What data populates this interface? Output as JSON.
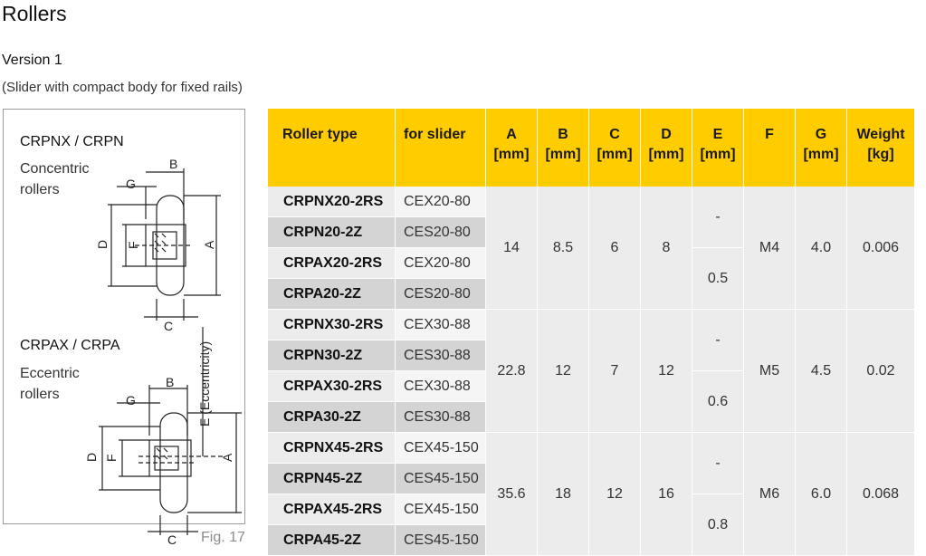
{
  "page": {
    "title": "Rollers",
    "subtitle": "Version 1",
    "note": "(Slider with compact body for fixed rails)",
    "figure_label": "Fig. 17"
  },
  "figure": {
    "concentric": {
      "title": "CRPNX / CRPN",
      "desc": "Concentric rollers",
      "dims": {
        "a": "A",
        "b": "B",
        "c": "C",
        "d": "D",
        "f": "F",
        "g": "G"
      }
    },
    "eccentric": {
      "title": "CRPAX / CRPA",
      "desc": "Eccentric rollers",
      "dims": {
        "a": "A",
        "b": "B",
        "c": "C",
        "d": "D",
        "f": "F",
        "g": "G",
        "e": "E (Eccentricity)"
      }
    }
  },
  "table": {
    "headers": {
      "roller_type": "Roller type",
      "for_slider": "for slider",
      "a": "A",
      "b": "B",
      "c": "C",
      "d": "D",
      "e": "E",
      "f": "F",
      "g": "G",
      "weight": "Weight",
      "unit_mm": "[mm]",
      "unit_kg": "[kg]"
    },
    "groups": [
      {
        "rows": [
          {
            "type": "CRPNX20-2RS",
            "slider": "CEX20-80"
          },
          {
            "type": "CRPN20-2Z",
            "slider": "CES20-80"
          },
          {
            "type": "CRPAX20-2RS",
            "slider": "CEX20-80"
          },
          {
            "type": "CRPA20-2Z",
            "slider": "CES20-80"
          }
        ],
        "a": "14",
        "b": "8.5",
        "c": "6",
        "d": "8",
        "e_concentric": "-",
        "e_eccentric": "0.5",
        "f": "M4",
        "g": "4.0",
        "weight": "0.006"
      },
      {
        "rows": [
          {
            "type": "CRPNX30-2RS",
            "slider": "CEX30-88"
          },
          {
            "type": "CRPN30-2Z",
            "slider": "CES30-88"
          },
          {
            "type": "CRPAX30-2RS",
            "slider": "CEX30-88"
          },
          {
            "type": "CRPA30-2Z",
            "slider": "CES30-88"
          }
        ],
        "a": "22.8",
        "b": "12",
        "c": "7",
        "d": "12",
        "e_concentric": "-",
        "e_eccentric": "0.6",
        "f": "M5",
        "g": "4.5",
        "weight": "0.02"
      },
      {
        "rows": [
          {
            "type": "CRPNX45-2RS",
            "slider": "CEX45-150"
          },
          {
            "type": "CRPN45-2Z",
            "slider": "CES45-150"
          },
          {
            "type": "CRPAX45-2RS",
            "slider": "CEX45-150"
          },
          {
            "type": "CRPA45-2Z",
            "slider": "CES45-150"
          }
        ],
        "a": "35.6",
        "b": "18",
        "c": "12",
        "d": "16",
        "e_concentric": "-",
        "e_eccentric": "0.8",
        "f": "M6",
        "g": "6.0",
        "weight": "0.068"
      }
    ]
  }
}
